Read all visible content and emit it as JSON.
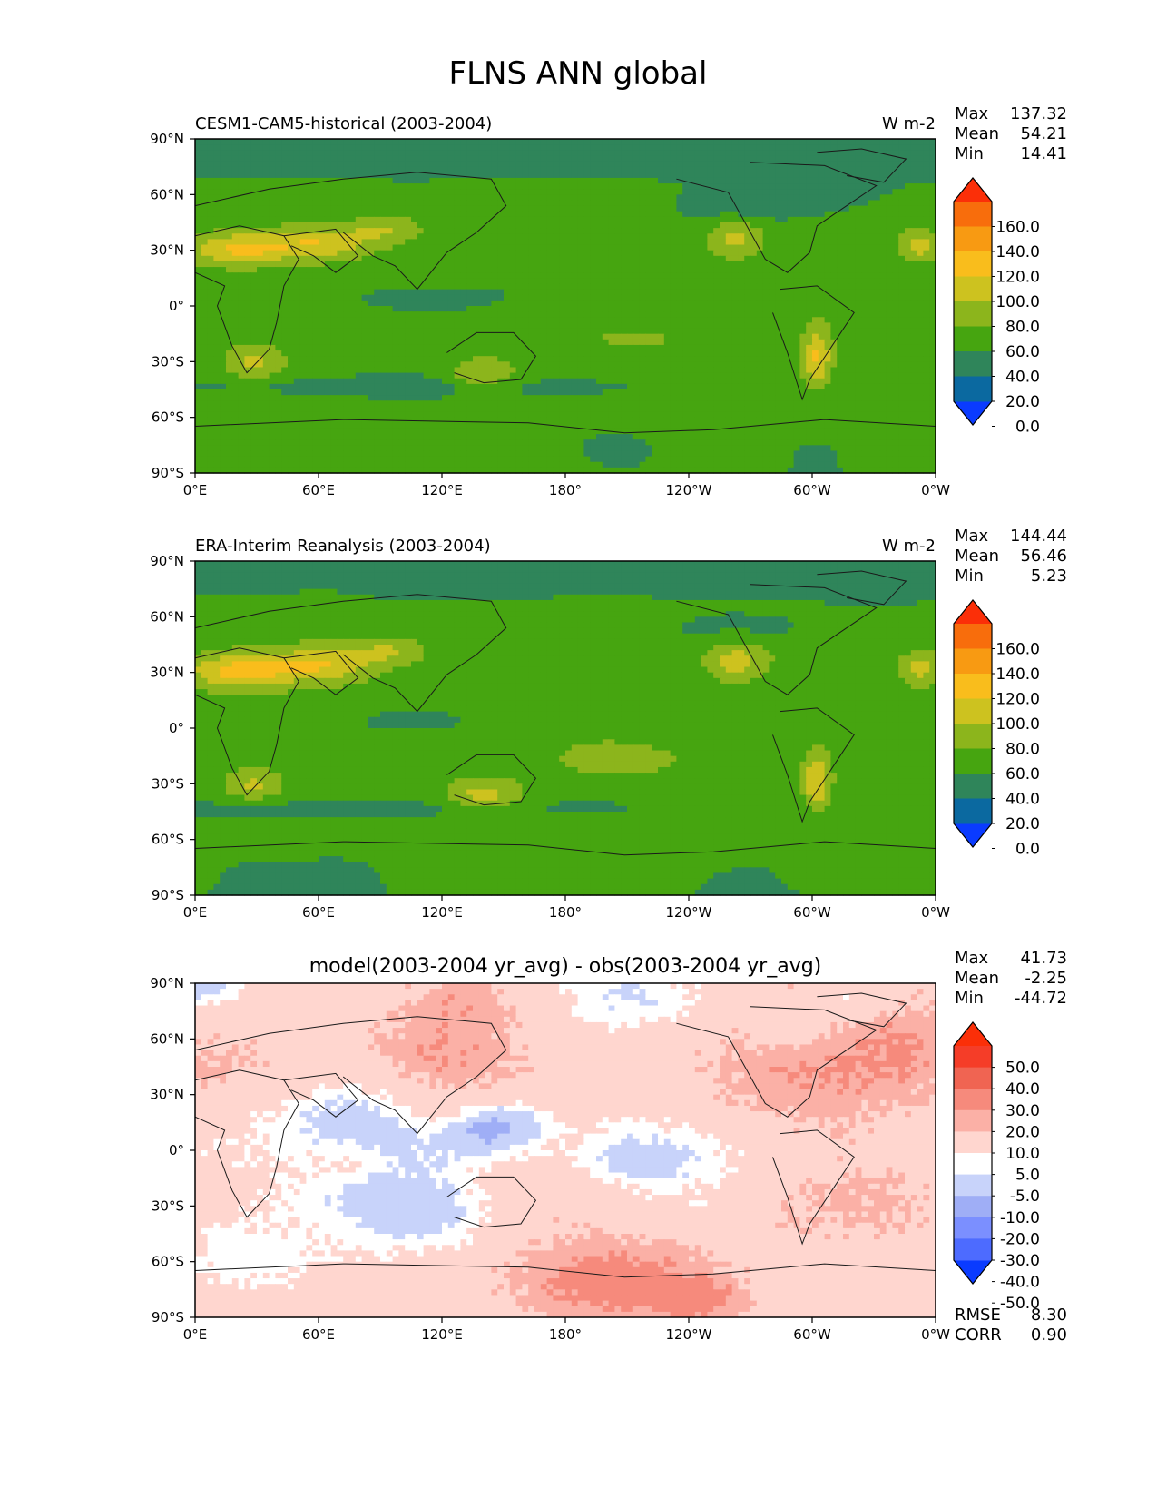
{
  "figure": {
    "title": "FLNS ANN global"
  },
  "colors": {
    "main": [
      "#0a3bff",
      "#0b69a0",
      "#2f855a",
      "#46a510",
      "#8cb51c",
      "#cdc21f",
      "#f9bd1c",
      "#f89a12",
      "#f86d0c",
      "#fb2f08"
    ],
    "diff": [
      "#0a3bff",
      "#4d6bff",
      "#7b8fff",
      "#9faef6",
      "#c8d3fa",
      "#ffffff",
      "#ffd6cf",
      "#fbb0a6",
      "#f68a7c",
      "#f06452",
      "#f53d28",
      "#fb2f08"
    ]
  },
  "chart_data": [
    {
      "type": "heatmap",
      "name": "panel-model",
      "left_title": "CESM1-CAM5-historical (2003-2004)",
      "units": "W m-2",
      "center_title": "",
      "stats": [
        {
          "label": "Max",
          "value": "137.32"
        },
        {
          "label": "Mean",
          "value": "54.21"
        },
        {
          "label": "Min",
          "value": "14.41"
        }
      ],
      "footer_stats": [],
      "xlim": [
        0,
        360
      ],
      "ylim": [
        -90,
        90
      ],
      "xticks": [
        "0°E",
        "60°E",
        "120°E",
        "180°",
        "120°W",
        "60°W",
        "0°W"
      ],
      "yticks": [
        "90°N",
        "60°N",
        "30°N",
        "0°",
        "30°S",
        "60°S",
        "90°S"
      ],
      "levels": [
        "0.0",
        "20.0",
        "40.0",
        "60.0",
        "80.0",
        "100.0",
        "120.0",
        "140.0",
        "160.0"
      ],
      "colorbar_extend": "both"
    },
    {
      "type": "heatmap",
      "name": "panel-obs",
      "left_title": "ERA-Interim Reanalysis (2003-2004)",
      "units": "W m-2",
      "center_title": "",
      "stats": [
        {
          "label": "Max",
          "value": "144.44"
        },
        {
          "label": "Mean",
          "value": "56.46"
        },
        {
          "label": "Min",
          "value": "5.23"
        }
      ],
      "footer_stats": [],
      "xlim": [
        0,
        360
      ],
      "ylim": [
        -90,
        90
      ],
      "xticks": [
        "0°E",
        "60°E",
        "120°E",
        "180°",
        "120°W",
        "60°W",
        "0°W"
      ],
      "yticks": [
        "90°N",
        "60°N",
        "30°N",
        "0°",
        "30°S",
        "60°S",
        "90°S"
      ],
      "levels": [
        "0.0",
        "20.0",
        "40.0",
        "60.0",
        "80.0",
        "100.0",
        "120.0",
        "140.0",
        "160.0"
      ],
      "colorbar_extend": "both"
    },
    {
      "type": "heatmap",
      "name": "panel-diff",
      "left_title": "",
      "units": "",
      "center_title": "model(2003-2004 yr_avg) - obs(2003-2004 yr_avg)",
      "stats": [
        {
          "label": "Max",
          "value": "41.73"
        },
        {
          "label": "Mean",
          "value": "-2.25"
        },
        {
          "label": "Min",
          "value": "-44.72"
        }
      ],
      "footer_stats": [
        {
          "label": "RMSE",
          "value": "8.30"
        },
        {
          "label": "CORR",
          "value": "0.90"
        }
      ],
      "xlim": [
        0,
        360
      ],
      "ylim": [
        -90,
        90
      ],
      "xticks": [
        "0°E",
        "60°E",
        "120°E",
        "180°",
        "120°W",
        "60°W",
        "0°W"
      ],
      "yticks": [
        "90°N",
        "60°N",
        "30°N",
        "0°",
        "30°S",
        "60°S",
        "90°S"
      ],
      "levels": [
        "-50.0",
        "-40.0",
        "-30.0",
        "-20.0",
        "-10.0",
        "-5.0",
        "5.0",
        "10.0",
        "20.0",
        "30.0",
        "40.0",
        "50.0"
      ],
      "colorbar_extend": "both"
    }
  ]
}
